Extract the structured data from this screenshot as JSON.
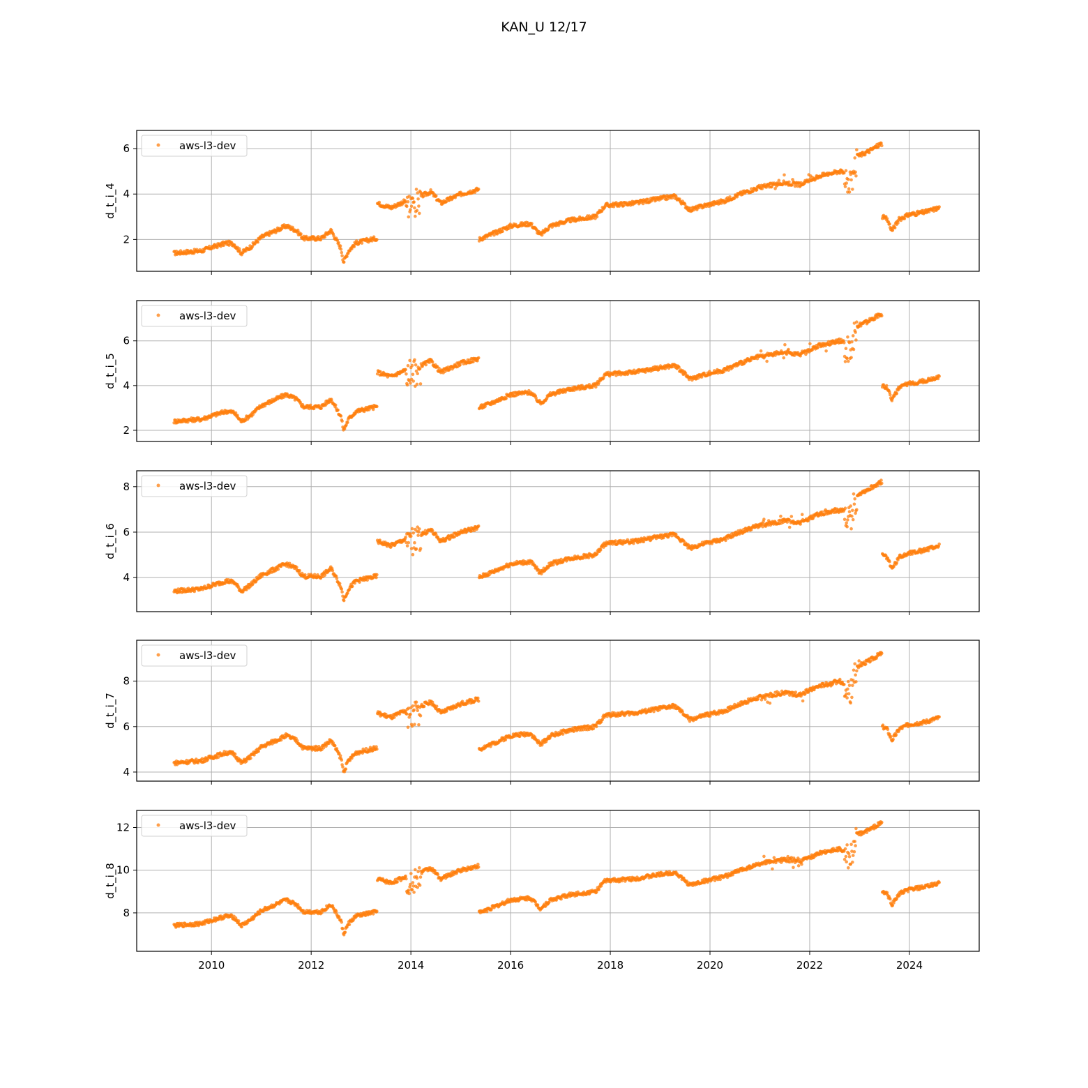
{
  "figure_title": "KAN_U 12/17",
  "colors": {
    "series": "#ff7f0e",
    "grid": "#b0b0b0",
    "frame": "#000000"
  },
  "chart_data": [
    {
      "type": "scatter",
      "ylabel": "d_t_i_4",
      "legend": {
        "label": "aws-l3-dev",
        "position": "upper-left"
      },
      "grid": true,
      "xlim": [
        2008.5,
        2025.4
      ],
      "ylim": [
        0.6,
        6.8
      ],
      "xticks": [
        2010,
        2012,
        2014,
        2016,
        2018,
        2020,
        2022,
        2024
      ],
      "xtick_labels_shown": false,
      "yticks": [
        2,
        4,
        6
      ],
      "offset": 0,
      "series": [
        {
          "name": "aws-l3-dev",
          "points": []
        }
      ]
    },
    {
      "type": "scatter",
      "ylabel": "d_t_i_5",
      "legend": {
        "label": "aws-l3-dev",
        "position": "upper-left"
      },
      "grid": true,
      "xlim": [
        2008.5,
        2025.4
      ],
      "ylim": [
        1.5,
        7.8
      ],
      "xticks": [
        2010,
        2012,
        2014,
        2016,
        2018,
        2020,
        2022,
        2024
      ],
      "xtick_labels_shown": false,
      "yticks": [
        2,
        4,
        6
      ],
      "offset": 1,
      "series": [
        {
          "name": "aws-l3-dev",
          "points": []
        }
      ]
    },
    {
      "type": "scatter",
      "ylabel": "d_t_i_6",
      "legend": {
        "label": "aws-l3-dev",
        "position": "upper-left"
      },
      "grid": true,
      "xlim": [
        2008.5,
        2025.4
      ],
      "ylim": [
        2.5,
        8.7
      ],
      "xticks": [
        2010,
        2012,
        2014,
        2016,
        2018,
        2020,
        2022,
        2024
      ],
      "xtick_labels_shown": false,
      "yticks": [
        4,
        6,
        8
      ],
      "offset": 2,
      "series": [
        {
          "name": "aws-l3-dev",
          "points": []
        }
      ]
    },
    {
      "type": "scatter",
      "ylabel": "d_t_i_7",
      "legend": {
        "label": "aws-l3-dev",
        "position": "upper-left"
      },
      "grid": true,
      "xlim": [
        2008.5,
        2025.4
      ],
      "ylim": [
        3.6,
        9.8
      ],
      "xticks": [
        2010,
        2012,
        2014,
        2016,
        2018,
        2020,
        2022,
        2024
      ],
      "xtick_labels_shown": false,
      "yticks": [
        4,
        6,
        8
      ],
      "offset": 3,
      "series": [
        {
          "name": "aws-l3-dev",
          "points": []
        }
      ]
    },
    {
      "type": "scatter",
      "ylabel": "d_t_i_8",
      "legend": {
        "label": "aws-l3-dev",
        "position": "upper-left"
      },
      "grid": true,
      "xlim": [
        2008.5,
        2025.4
      ],
      "ylim": [
        6.2,
        12.8
      ],
      "xticks": [
        2010,
        2012,
        2014,
        2016,
        2018,
        2020,
        2022,
        2024
      ],
      "xtick_labels_shown": true,
      "yticks": [
        8,
        10,
        12
      ],
      "offset": 6,
      "series": [
        {
          "name": "aws-l3-dev",
          "points": []
        }
      ]
    }
  ],
  "base_profile": [
    [
      2009.25,
      1.4
    ],
    [
      2009.5,
      1.45
    ],
    [
      2009.8,
      1.5
    ],
    [
      2010.0,
      1.65
    ],
    [
      2010.3,
      1.85
    ],
    [
      2010.45,
      1.8
    ],
    [
      2010.6,
      1.4
    ],
    [
      2010.8,
      1.7
    ],
    [
      2011.0,
      2.1
    ],
    [
      2011.2,
      2.3
    ],
    [
      2011.5,
      2.6
    ],
    [
      2011.7,
      2.4
    ],
    [
      2011.85,
      2.05
    ],
    [
      2012.2,
      2.05
    ],
    [
      2012.4,
      2.4
    ],
    [
      2012.6,
      1.6
    ],
    [
      2012.65,
      1.0
    ],
    [
      2012.75,
      1.5
    ],
    [
      2012.9,
      1.85
    ],
    [
      2013.3,
      2.05
    ],
    [
      2013.32,
      3.6
    ],
    [
      2013.6,
      3.4
    ],
    [
      2014.0,
      3.8
    ],
    [
      2014.2,
      3.9
    ],
    [
      2014.4,
      4.1
    ],
    [
      2014.6,
      3.6
    ],
    [
      2015.0,
      4.0
    ],
    [
      2015.35,
      4.2
    ],
    [
      2015.36,
      2.0
    ],
    [
      2015.7,
      2.3
    ],
    [
      2016.0,
      2.6
    ],
    [
      2016.4,
      2.7
    ],
    [
      2016.6,
      2.2
    ],
    [
      2016.8,
      2.6
    ],
    [
      2017.2,
      2.85
    ],
    [
      2017.7,
      3.0
    ],
    [
      2017.9,
      3.5
    ],
    [
      2018.5,
      3.6
    ],
    [
      2019.0,
      3.8
    ],
    [
      2019.3,
      3.9
    ],
    [
      2019.6,
      3.3
    ],
    [
      2019.9,
      3.5
    ],
    [
      2020.3,
      3.7
    ],
    [
      2020.6,
      4.0
    ],
    [
      2021.0,
      4.3
    ],
    [
      2021.5,
      4.5
    ],
    [
      2021.8,
      4.4
    ],
    [
      2022.2,
      4.8
    ],
    [
      2022.6,
      5.0
    ],
    [
      2022.85,
      4.8
    ],
    [
      2022.9,
      5.6
    ],
    [
      2023.2,
      5.9
    ],
    [
      2023.42,
      6.2
    ],
    [
      2023.45,
      3.0
    ],
    [
      2023.55,
      2.9
    ],
    [
      2023.65,
      2.4
    ],
    [
      2023.8,
      2.9
    ],
    [
      2024.0,
      3.1
    ],
    [
      2024.3,
      3.2
    ],
    [
      2024.6,
      3.4
    ]
  ]
}
